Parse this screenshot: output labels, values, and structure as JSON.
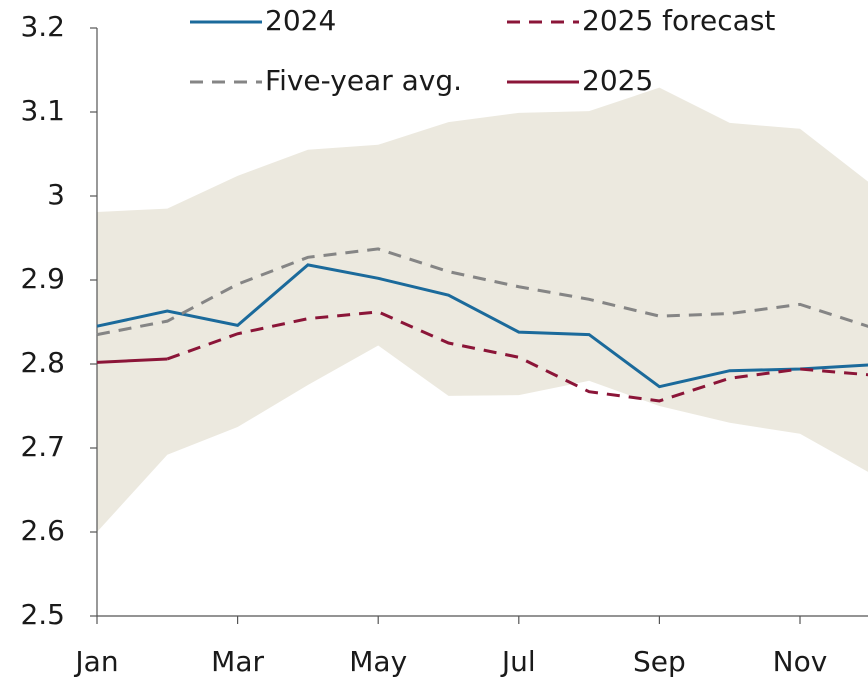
{
  "chart_data": {
    "type": "line",
    "categories": [
      "Jan",
      null,
      "Mar",
      null,
      "May",
      null,
      "Jul",
      null,
      "Sep",
      null,
      "Nov",
      null
    ],
    "ylim": [
      2.5,
      3.2
    ],
    "yticks": [
      2.5,
      2.6,
      2.7,
      2.8,
      2.9,
      3.0,
      3.1,
      3.2
    ],
    "band": {
      "color": "#ece9df",
      "upper": [
        2.981,
        2.985,
        3.024,
        3.055,
        3.061,
        3.088,
        3.099,
        3.101,
        3.129,
        3.087,
        3.08,
        3.015
      ],
      "lower": [
        2.6,
        2.692,
        2.725,
        2.775,
        2.822,
        2.762,
        2.763,
        2.78,
        2.75,
        2.73,
        2.717,
        2.67
      ]
    },
    "series": [
      {
        "name": "2024",
        "color": "#1b6a9b",
        "dash": false,
        "values": [
          2.845,
          2.863,
          2.846,
          2.918,
          2.902,
          2.882,
          2.838,
          2.835,
          2.773,
          2.792,
          2.794,
          2.799
        ]
      },
      {
        "name": "2025 forecast",
        "color": "#8b1538",
        "dash": true,
        "values": [
          null,
          2.806,
          2.836,
          2.854,
          2.862,
          2.825,
          2.808,
          2.767,
          2.756,
          2.783,
          2.794,
          2.787
        ]
      },
      {
        "name": "Five-year avg.",
        "color": "#858585",
        "dash": true,
        "values": [
          2.835,
          2.851,
          2.895,
          2.927,
          2.937,
          2.91,
          2.892,
          2.877,
          2.857,
          2.86,
          2.871,
          2.844
        ]
      },
      {
        "name": "2025",
        "color": "#8b1538",
        "dash": false,
        "values": [
          2.802,
          2.806,
          null,
          null,
          null,
          null,
          null,
          null,
          null,
          null,
          null,
          null
        ]
      }
    ]
  }
}
